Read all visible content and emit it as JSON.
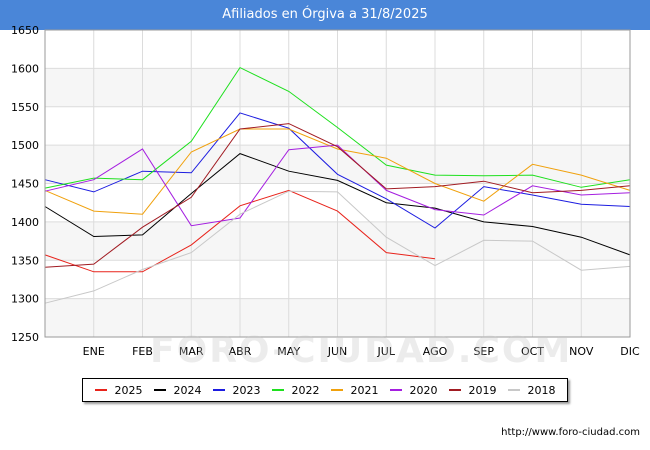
{
  "title": "Afiliados en Órgiva a 31/8/2025",
  "source": "http://www.foro-ciudad.com",
  "watermark": "FORO-CIUDAD.COM",
  "chart_data": {
    "type": "line",
    "categories": [
      "",
      "ENE",
      "FEB",
      "MAR",
      "ABR",
      "MAY",
      "JUN",
      "JUL",
      "AGO",
      "SEP",
      "OCT",
      "NOV",
      "DIC"
    ],
    "yticks": [
      1250,
      1300,
      1350,
      1400,
      1450,
      1500,
      1550,
      1600,
      1650
    ],
    "ylim": [
      1250,
      1650
    ],
    "grid": true,
    "legend_position": "bottom",
    "series": [
      {
        "name": "2025",
        "color": "#e8231b",
        "values": [
          1357,
          1335,
          1335,
          1370,
          1421,
          1441,
          1414,
          1360,
          1352,
          null,
          null,
          null,
          null
        ]
      },
      {
        "name": "2024",
        "color": "#000000",
        "values": [
          1420,
          1381,
          1383,
          1437,
          1489,
          1466,
          1454,
          1425,
          1418,
          1400,
          1394,
          1380,
          1357
        ]
      },
      {
        "name": "2023",
        "color": "#1c1ce0",
        "values": [
          1455,
          1439,
          1466,
          1464,
          1542,
          1522,
          1462,
          1430,
          1392,
          1446,
          1435,
          1423,
          1420
        ]
      },
      {
        "name": "2022",
        "color": "#1ee01e",
        "values": [
          1444,
          1457,
          1455,
          1505,
          1601,
          1570,
          1523,
          1474,
          1461,
          1460,
          1461,
          1445,
          1455
        ]
      },
      {
        "name": "2021",
        "color": "#f0a10d",
        "values": [
          1441,
          1414,
          1410,
          1491,
          1521,
          1521,
          1495,
          1483,
          1450,
          1427,
          1475,
          1461,
          1441
        ]
      },
      {
        "name": "2020",
        "color": "#a51fe0",
        "values": [
          1440,
          1455,
          1495,
          1395,
          1405,
          1494,
          1500,
          1441,
          1416,
          1409,
          1447,
          1435,
          1438
        ]
      },
      {
        "name": "2019",
        "color": "#a11b22",
        "values": [
          1341,
          1345,
          1393,
          1432,
          1521,
          1528,
          1498,
          1443,
          1446,
          1453,
          1438,
          1441,
          1447
        ]
      },
      {
        "name": "2018",
        "color": "#c8c8c8",
        "values": [
          1294,
          1310,
          1338,
          1360,
          1410,
          1440,
          1439,
          1380,
          1343,
          1376,
          1375,
          1337,
          1342
        ]
      }
    ]
  }
}
